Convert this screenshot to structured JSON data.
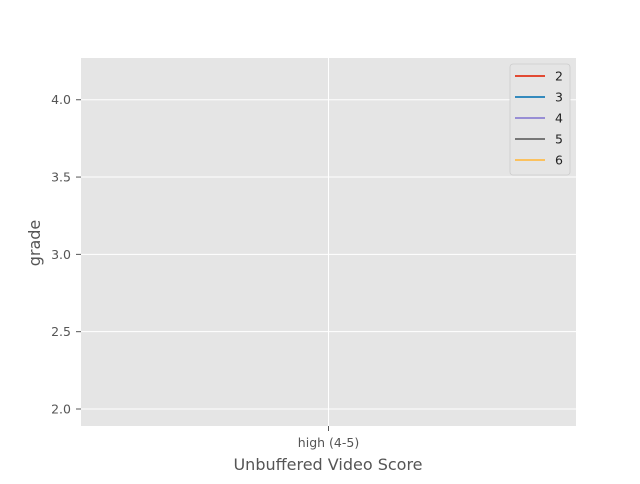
{
  "chart_data": {
    "type": "line",
    "title": "",
    "xlabel": "Unbuffered Video Score",
    "ylabel": "grade",
    "categories": [
      "high (4-5)"
    ],
    "ylim": [
      1.89,
      4.27
    ],
    "yticks": [
      "2.0",
      "2.5",
      "3.0",
      "3.5",
      "4.0"
    ],
    "ytick_values": [
      2.0,
      2.5,
      3.0,
      3.5,
      4.0
    ],
    "grid": true,
    "legend_position": "top-right",
    "series": [
      {
        "name": "2",
        "color": "#E24A33",
        "values": [
          null
        ]
      },
      {
        "name": "3",
        "color": "#348ABD",
        "values": [
          null
        ]
      },
      {
        "name": "4",
        "color": "#988ED5",
        "values": [
          null
        ]
      },
      {
        "name": "5",
        "color": "#777777",
        "values": [
          null
        ]
      },
      {
        "name": "6",
        "color": "#FBC15E",
        "values": [
          null
        ]
      }
    ]
  },
  "style": {
    "plot_background": "#E5E5E5",
    "grid_color": "#FFFFFF",
    "tick_color": "#555555",
    "label_color": "#555555",
    "legend_background": "#E5E5E5"
  }
}
